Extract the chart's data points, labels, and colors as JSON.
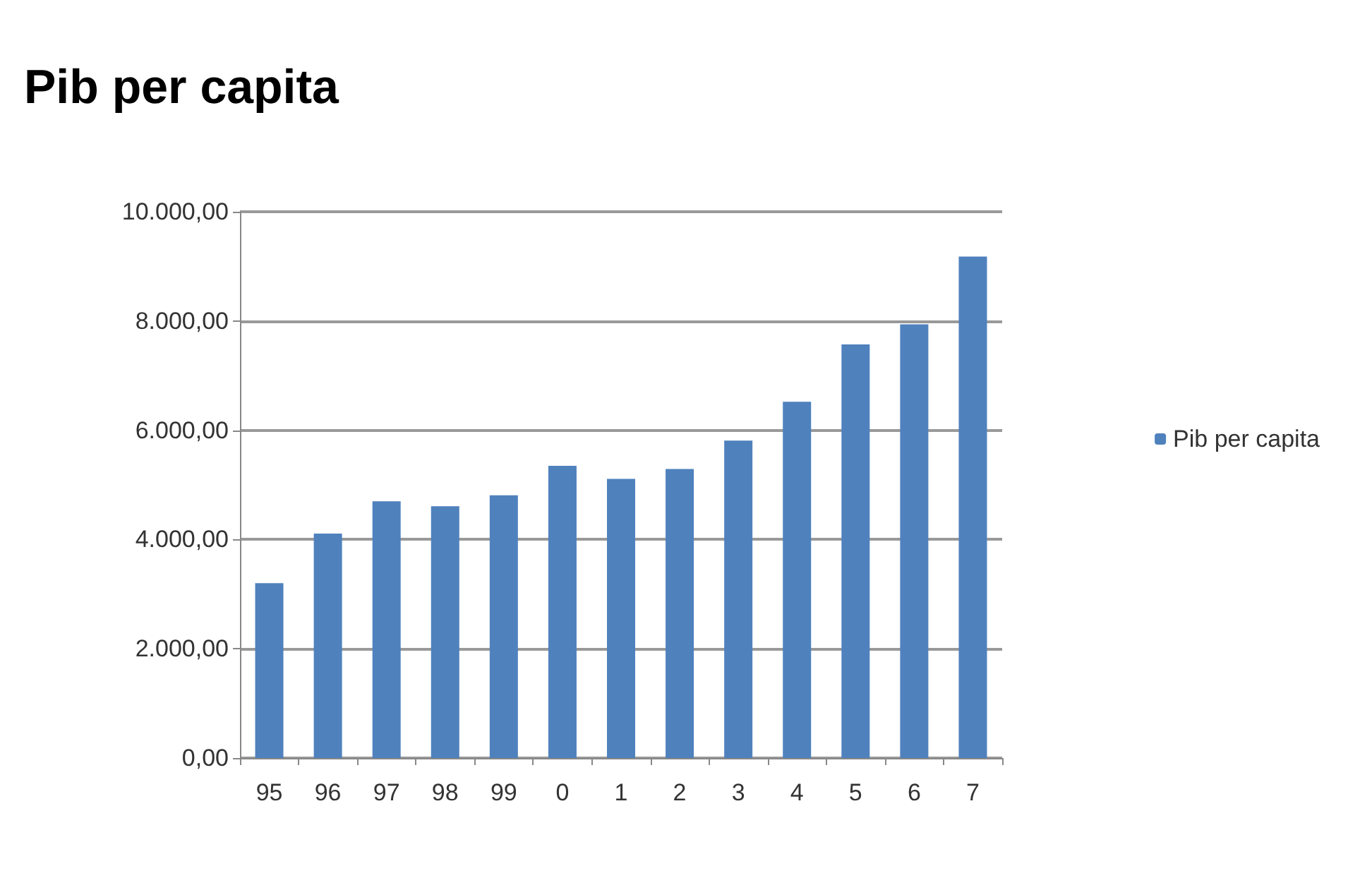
{
  "chart_data": {
    "type": "bar",
    "title": "Pib per capita",
    "categories": [
      "95",
      "96",
      "97",
      "98",
      "99",
      "0",
      "1",
      "2",
      "3",
      "4",
      "5",
      "6",
      "7"
    ],
    "series": [
      {
        "name": "Pib per capita",
        "color": "#4f81bd",
        "values": [
          3200,
          4110,
          4700,
          4610,
          4810,
          5350,
          5110,
          5290,
          5810,
          6520,
          7570,
          7940,
          9180
        ]
      }
    ],
    "ylim": [
      0,
      10000
    ],
    "yticks": [
      {
        "value": 0,
        "label": "0,00"
      },
      {
        "value": 2000,
        "label": "2.000,00"
      },
      {
        "value": 4000,
        "label": "4.000,00"
      },
      {
        "value": 6000,
        "label": "6.000,00"
      },
      {
        "value": 8000,
        "label": "8.000,00"
      },
      {
        "value": 10000,
        "label": "10.000,00"
      }
    ],
    "grid": true,
    "legend": "right"
  }
}
